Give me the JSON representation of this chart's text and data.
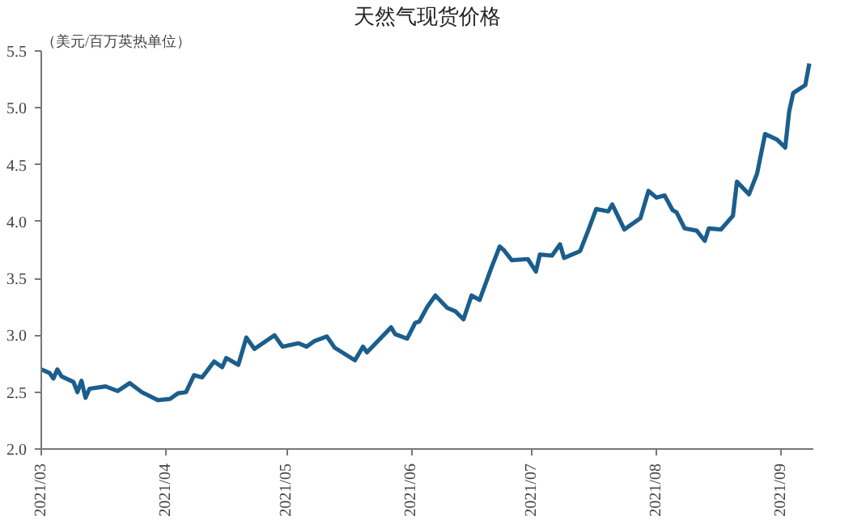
{
  "chart_data": {
    "type": "line",
    "title": "天然气现货价格",
    "ylabel": "（美元/百万英热单位）",
    "x": [
      "2021-03-01",
      "2021-03-03",
      "2021-03-04",
      "2021-03-05",
      "2021-03-06",
      "2021-03-09",
      "2021-03-10",
      "2021-03-11",
      "2021-03-12",
      "2021-03-13",
      "2021-03-17",
      "2021-03-20",
      "2021-03-23",
      "2021-03-26",
      "2021-03-30",
      "2021-04-02",
      "2021-04-04",
      "2021-04-06",
      "2021-04-08",
      "2021-04-10",
      "2021-04-13",
      "2021-04-15",
      "2021-04-16",
      "2021-04-19",
      "2021-04-21",
      "2021-04-23",
      "2021-04-28",
      "2021-04-30",
      "2021-05-04",
      "2021-05-06",
      "2021-05-08",
      "2021-05-11",
      "2021-05-13",
      "2021-05-18",
      "2021-05-20",
      "2021-05-21",
      "2021-05-27",
      "2021-05-28",
      "2021-05-31",
      "2021-06-02",
      "2021-06-03",
      "2021-06-05",
      "2021-06-07",
      "2021-06-10",
      "2021-06-12",
      "2021-06-14",
      "2021-06-16",
      "2021-06-18",
      "2021-06-21",
      "2021-06-23",
      "2021-06-24",
      "2021-06-26",
      "2021-06-30",
      "2021-07-02",
      "2021-07-03",
      "2021-07-06",
      "2021-07-08",
      "2021-07-09",
      "2021-07-13",
      "2021-07-15",
      "2021-07-17",
      "2021-07-20",
      "2021-07-21",
      "2021-07-24",
      "2021-07-28",
      "2021-07-30",
      "2021-08-01",
      "2021-08-03",
      "2021-08-05",
      "2021-08-06",
      "2021-08-08",
      "2021-08-11",
      "2021-08-13",
      "2021-08-14",
      "2021-08-17",
      "2021-08-20",
      "2021-08-21",
      "2021-08-24",
      "2021-08-26",
      "2021-08-28",
      "2021-08-31",
      "2021-09-02",
      "2021-09-03",
      "2021-09-04",
      "2021-09-07",
      "2021-09-08"
    ],
    "series": [
      {
        "color": "#1b5e8c",
        "values": [
          2.7,
          2.67,
          2.62,
          2.7,
          2.64,
          2.59,
          2.5,
          2.6,
          2.45,
          2.53,
          2.55,
          2.51,
          2.58,
          2.5,
          2.43,
          2.44,
          2.49,
          2.5,
          2.65,
          2.63,
          2.77,
          2.72,
          2.8,
          2.74,
          2.98,
          2.88,
          3.0,
          2.9,
          2.93,
          2.9,
          2.95,
          2.99,
          2.89,
          2.78,
          2.9,
          2.85,
          3.07,
          3.01,
          2.97,
          3.11,
          3.12,
          3.25,
          3.35,
          3.24,
          3.21,
          3.14,
          3.35,
          3.31,
          3.6,
          3.78,
          3.75,
          3.66,
          3.67,
          3.56,
          3.71,
          3.7,
          3.8,
          3.68,
          3.74,
          3.92,
          4.11,
          4.09,
          4.15,
          3.93,
          4.03,
          4.27,
          4.21,
          4.23,
          4.1,
          4.08,
          3.94,
          3.92,
          3.83,
          3.94,
          3.93,
          4.05,
          4.35,
          4.24,
          4.42,
          4.77,
          4.72,
          4.65,
          4.97,
          5.13,
          5.2,
          5.39
        ]
      }
    ],
    "xlim": [
      "2021-03-01",
      "2021-09-09"
    ],
    "xticks": [
      {
        "value": "2021-03-01",
        "label": "2021/03"
      },
      {
        "value": "2021-04-01",
        "label": "2021/04"
      },
      {
        "value": "2021-05-01",
        "label": "2021/05"
      },
      {
        "value": "2021-06-01",
        "label": "2021/06"
      },
      {
        "value": "2021-07-01",
        "label": "2021/07"
      },
      {
        "value": "2021-08-01",
        "label": "2021/08"
      },
      {
        "value": "2021-09-01",
        "label": "2021/09"
      }
    ],
    "ylim": [
      2.0,
      5.5
    ],
    "yticks": [
      {
        "value": 2.0,
        "label": "2.0"
      },
      {
        "value": 2.5,
        "label": "2.5"
      },
      {
        "value": 3.0,
        "label": "3.0"
      },
      {
        "value": 3.5,
        "label": "3.5"
      },
      {
        "value": 4.0,
        "label": "4.0"
      },
      {
        "value": 4.5,
        "label": "4.5"
      },
      {
        "value": 5.0,
        "label": "5.0"
      },
      {
        "value": 5.5,
        "label": "5.5"
      }
    ],
    "grid": false,
    "line_style": "solid"
  }
}
